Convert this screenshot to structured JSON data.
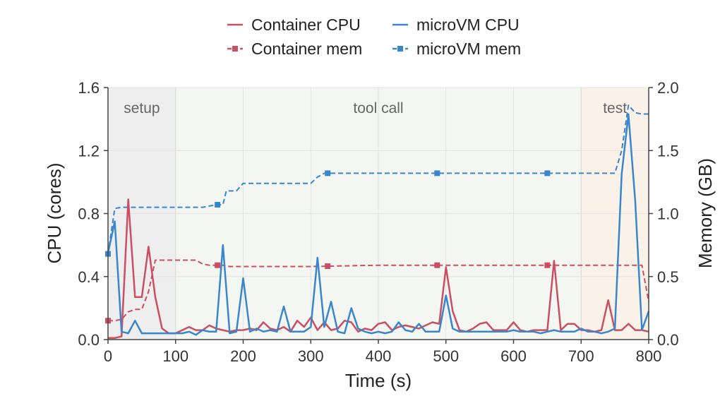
{
  "chart_data": {
    "type": "line",
    "xlabel": "Time (s)",
    "ylabel_left": "CPU (cores)",
    "ylabel_right": "Memory (GB)",
    "xlim": [
      0,
      800
    ],
    "ylim_left": [
      0,
      1.6
    ],
    "ylim_right": [
      0,
      2.0
    ],
    "x_ticks": [
      0,
      100,
      200,
      300,
      400,
      500,
      600,
      700,
      800
    ],
    "y_ticks_left": [
      0.0,
      0.4,
      0.8,
      1.2,
      1.6
    ],
    "y_ticks_right": [
      0.0,
      0.5,
      1.0,
      1.5,
      2.0
    ],
    "grid": true,
    "legend_position": "top-center",
    "phases": [
      {
        "label": "setup",
        "start": 0,
        "end": 100,
        "color": "#eeeeee"
      },
      {
        "label": "tool call",
        "start": 100,
        "end": 700,
        "color": "#f3f6f1"
      },
      {
        "label": "test",
        "start": 700,
        "end": 800,
        "color": "#faf2e8"
      }
    ],
    "series": [
      {
        "name": "Container CPU",
        "axis": "left",
        "style": "solid",
        "color": "#c94f62",
        "markers": false,
        "x": [
          0,
          10,
          20,
          30,
          40,
          50,
          60,
          70,
          80,
          90,
          100,
          110,
          120,
          130,
          140,
          150,
          160,
          170,
          180,
          190,
          200,
          210,
          220,
          230,
          240,
          250,
          260,
          270,
          280,
          290,
          300,
          310,
          320,
          330,
          340,
          350,
          360,
          370,
          380,
          390,
          400,
          410,
          420,
          430,
          440,
          450,
          460,
          470,
          480,
          490,
          500,
          510,
          520,
          530,
          540,
          550,
          560,
          570,
          580,
          590,
          600,
          610,
          620,
          630,
          640,
          650,
          660,
          670,
          680,
          690,
          700,
          710,
          720,
          730,
          740,
          750,
          760,
          770,
          780,
          790,
          800
        ],
        "y": [
          0.01,
          0.01,
          0.02,
          0.89,
          0.27,
          0.27,
          0.59,
          0.27,
          0.07,
          0.04,
          0.04,
          0.06,
          0.08,
          0.06,
          0.06,
          0.09,
          0.07,
          0.06,
          0.05,
          0.06,
          0.06,
          0.07,
          0.06,
          0.11,
          0.07,
          0.06,
          0.08,
          0.05,
          0.12,
          0.08,
          0.14,
          0.06,
          0.11,
          0.06,
          0.07,
          0.12,
          0.11,
          0.05,
          0.07,
          0.06,
          0.1,
          0.11,
          0.06,
          0.08,
          0.09,
          0.08,
          0.07,
          0.09,
          0.11,
          0.1,
          0.46,
          0.18,
          0.06,
          0.05,
          0.07,
          0.1,
          0.11,
          0.06,
          0.06,
          0.06,
          0.11,
          0.06,
          0.05,
          0.06,
          0.06,
          0.06,
          0.5,
          0.06,
          0.1,
          0.1,
          0.06,
          0.06,
          0.05,
          0.06,
          0.25,
          0.06,
          0.06,
          0.1,
          0.06,
          0.06,
          0.05
        ]
      },
      {
        "name": "microVM CPU",
        "axis": "left",
        "style": "solid",
        "color": "#3a86cc",
        "markers": false,
        "x": [
          0,
          10,
          20,
          30,
          40,
          50,
          60,
          70,
          80,
          90,
          100,
          110,
          120,
          130,
          140,
          150,
          160,
          170,
          180,
          190,
          200,
          210,
          220,
          230,
          240,
          250,
          260,
          270,
          280,
          290,
          300,
          310,
          320,
          330,
          340,
          350,
          360,
          370,
          380,
          390,
          400,
          410,
          420,
          430,
          440,
          450,
          460,
          470,
          480,
          490,
          500,
          510,
          520,
          530,
          540,
          550,
          560,
          570,
          580,
          590,
          600,
          610,
          620,
          630,
          640,
          650,
          660,
          670,
          680,
          690,
          700,
          710,
          720,
          730,
          740,
          750,
          760,
          770,
          780,
          790,
          800
        ],
        "y": [
          0.55,
          0.75,
          0.05,
          0.04,
          0.12,
          0.04,
          0.04,
          0.04,
          0.04,
          0.04,
          0.04,
          0.04,
          0.05,
          0.03,
          0.06,
          0.05,
          0.05,
          0.6,
          0.04,
          0.05,
          0.39,
          0.05,
          0.07,
          0.05,
          0.06,
          0.05,
          0.21,
          0.05,
          0.05,
          0.05,
          0.08,
          0.52,
          0.08,
          0.24,
          0.05,
          0.04,
          0.2,
          0.07,
          0.05,
          0.04,
          0.05,
          0.04,
          0.05,
          0.11,
          0.06,
          0.05,
          0.1,
          0.05,
          0.05,
          0.05,
          0.28,
          0.07,
          0.05,
          0.05,
          0.05,
          0.05,
          0.05,
          0.05,
          0.05,
          0.05,
          0.06,
          0.05,
          0.05,
          0.05,
          0.04,
          0.05,
          0.06,
          0.05,
          0.05,
          0.05,
          0.07,
          0.05,
          0.05,
          0.04,
          0.05,
          0.07,
          1.05,
          1.43,
          0.88,
          0.06,
          0.18
        ]
      },
      {
        "name": "Container mem",
        "axis": "right",
        "style": "dashed",
        "color": "#c94f62",
        "markers": true,
        "x": [
          0,
          10,
          20,
          30,
          40,
          50,
          60,
          70,
          80,
          90,
          100,
          110,
          120,
          130,
          140,
          150,
          160,
          170,
          180,
          190,
          200,
          300,
          400,
          500,
          600,
          700,
          750,
          790,
          800
        ],
        "y": [
          0.15,
          0.15,
          0.16,
          0.22,
          0.24,
          0.24,
          0.38,
          0.63,
          0.63,
          0.63,
          0.63,
          0.63,
          0.63,
          0.63,
          0.6,
          0.59,
          0.59,
          0.59,
          0.58,
          0.58,
          0.58,
          0.58,
          0.59,
          0.59,
          0.59,
          0.59,
          0.59,
          0.59,
          0.3
        ],
        "marker_x": [
          0,
          162,
          325,
          487,
          650
        ]
      },
      {
        "name": "microVM mem",
        "axis": "right",
        "style": "dashed",
        "color": "#3a86cc",
        "markers": true,
        "x": [
          0,
          10,
          20,
          50,
          100,
          140,
          150,
          160,
          170,
          175,
          190,
          200,
          210,
          250,
          300,
          310,
          320,
          330,
          400,
          500,
          600,
          700,
          750,
          760,
          770,
          780,
          790,
          800
        ],
        "y": [
          0.68,
          1.04,
          1.05,
          1.05,
          1.05,
          1.05,
          1.06,
          1.07,
          1.07,
          1.18,
          1.18,
          1.24,
          1.24,
          1.24,
          1.24,
          1.29,
          1.32,
          1.32,
          1.32,
          1.32,
          1.32,
          1.32,
          1.32,
          1.5,
          1.86,
          1.8,
          1.79,
          1.79
        ],
        "marker_x": [
          0,
          162,
          325,
          487,
          650
        ]
      }
    ]
  }
}
